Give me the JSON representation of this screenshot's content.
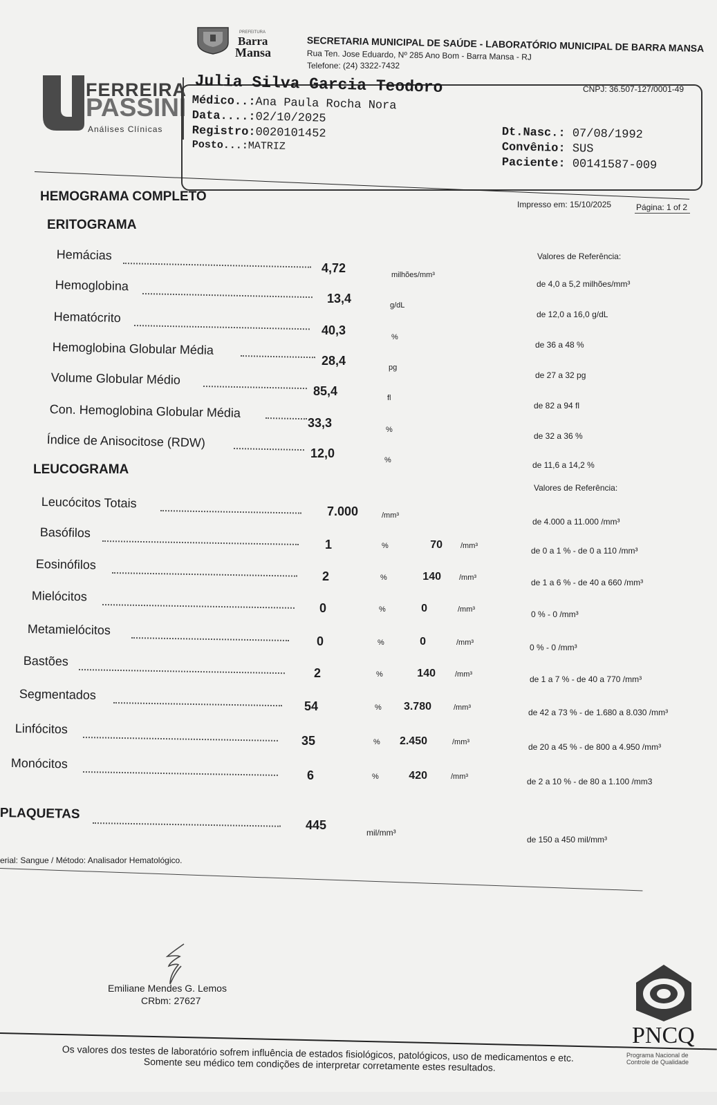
{
  "lab": {
    "city_label_top": "PREFEITURA",
    "city_name_1": "Barra",
    "city_name_2": "Mansa",
    "title": "SECRETARIA MUNICIPAL DE SAÚDE - LABORATÓRIO MUNICIPAL DE BARRA MANSA",
    "address": "Rua Ten. Jose Eduardo, Nº 285 Ano Bom - Barra Mansa - RJ",
    "phone": "Telefone: (24) 3322-7432",
    "cnpj": "CNPJ: 36.507-127/0001-49",
    "brand_1": "FERREIRA",
    "brand_2": "PASSINI",
    "brand_sub": "Análises Clínicas"
  },
  "patient": {
    "name": "Julia Silva Garcia Teodoro",
    "medico_label": "Médico..:",
    "medico": "Ana Paula Rocha Nora",
    "data_label": "Data....:",
    "data": "02/10/2025",
    "registro_label": "Registro:",
    "registro": "0020101452",
    "posto_label": "Posto...:",
    "posto": "MATRIZ",
    "nasc_label": "Dt.Nasc.:",
    "nasc": "07/08/1992",
    "convenio_label": "Convênio:",
    "convenio": "SUS",
    "paciente_label": "Paciente:",
    "paciente": "00141587-009"
  },
  "report": {
    "title": "HEMOGRAMA COMPLETO",
    "printed": "Impresso em:  15/10/2025",
    "page": "Página:  1 of 2"
  },
  "eritrograma": {
    "title": "ERITOGRAMA",
    "ref_header": "Valores de Referência:",
    "rows": [
      {
        "label": "Hemácias",
        "value": "4,72",
        "unit": "milhões/mm³",
        "ref": "de 4,0 a 5,2 milhões/mm³"
      },
      {
        "label": "Hemoglobina",
        "value": "13,4",
        "unit": "g/dL",
        "ref": "de 12,0 a 16,0 g/dL"
      },
      {
        "label": "Hematócrito",
        "value": "40,3",
        "unit": "%",
        "ref": "de 36 a 48 %"
      },
      {
        "label": "Hemoglobina Globular Média",
        "value": "28,4",
        "unit": "pg",
        "ref": "de 27 a 32 pg"
      },
      {
        "label": "Volume Globular Médio",
        "value": "85,4",
        "unit": "fl",
        "ref": "de 82 a 94 fl"
      },
      {
        "label": "Con. Hemoglobina Globular Média",
        "value": "33,3",
        "unit": "%",
        "ref": "de 32 a 36 %"
      },
      {
        "label": "Índice de Anisocitose (RDW)",
        "value": "12,0",
        "unit": "%",
        "ref": "de 11,6 a 14,2 %"
      }
    ]
  },
  "leucograma": {
    "title": "LEUCOGRAMA",
    "ref_header": "Valores de Referência:",
    "total": {
      "label": "Leucócitos Totais",
      "value": "7.000",
      "unit": "/mm³",
      "ref": "de 4.000 a 11.000 /mm³"
    },
    "rows": [
      {
        "label": "Basófilos",
        "pct": "1",
        "pct_sym": "%",
        "abs": "70",
        "unit": "/mm³",
        "ref": "de 0 a 1 % - de 0 a 110 /mm³"
      },
      {
        "label": "Eosinófilos",
        "pct": "2",
        "pct_sym": "%",
        "abs": "140",
        "unit": "/mm³",
        "ref": "de 1 a 6 % - de 40 a 660 /mm³"
      },
      {
        "label": "Mielócitos",
        "pct": "0",
        "pct_sym": "%",
        "abs": "0",
        "unit": "/mm³",
        "ref": "0 % - 0 /mm³"
      },
      {
        "label": "Metamielócitos",
        "pct": "0",
        "pct_sym": "%",
        "abs": "0",
        "unit": "/mm³",
        "ref": "0 % - 0 /mm³"
      },
      {
        "label": "Bastões",
        "pct": "2",
        "pct_sym": "%",
        "abs": "140",
        "unit": "/mm³",
        "ref": "de 1 a 7 % - de 40 a 770 /mm³"
      },
      {
        "label": "Segmentados",
        "pct": "54",
        "pct_sym": "%",
        "abs": "3.780",
        "unit": "/mm³",
        "ref": "de 42 a 73 % - de 1.680 a 8.030 /mm³"
      },
      {
        "label": "Linfócitos",
        "pct": "35",
        "pct_sym": "%",
        "abs": "2.450",
        "unit": "/mm³",
        "ref": "de 20 a 45 % - de 800 a 4.950 /mm³"
      },
      {
        "label": "Monócitos",
        "pct": "6",
        "pct_sym": "%",
        "abs": "420",
        "unit": "/mm³",
        "ref": "de 2 a 10 % - de 80 a 1.100 /mm3"
      }
    ]
  },
  "plaquetas": {
    "label": "PLAQUETAS",
    "value": "445",
    "unit": "mil/mm³",
    "ref": "de 150 a 450 mil/mm³"
  },
  "material": "erial: Sangue / Método: Analisador Hematológico.",
  "signature": {
    "name": "Emiliane Mendes G. Lemos",
    "crbm": "CRbm: 27627"
  },
  "pncq": {
    "name": "PNCQ",
    "sub1": "Programa Nacional de",
    "sub2": "Controle de Qualidade"
  },
  "footer": {
    "line1": "Os valores dos testes de laboratório sofrem influência de estados fisiológicos, patológicos, uso de medicamentos e etc.",
    "line2": "Somente seu médico tem condições de interpretar corretamente estes resultados."
  }
}
